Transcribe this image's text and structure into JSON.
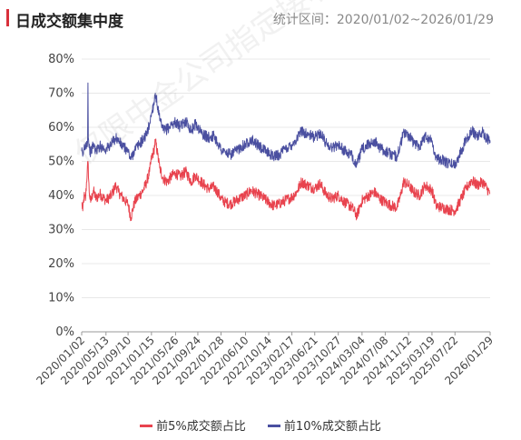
{
  "header": {
    "title": "日成交额集中度",
    "range_label": "统计区间：2020/01/02~2026/01/29"
  },
  "watermark": "仅限中金公司指定接收人使用",
  "chart_data": {
    "type": "line",
    "y_ticks": [
      "0%",
      "10%",
      "20%",
      "30%",
      "40%",
      "50%",
      "60%",
      "70%",
      "80%"
    ],
    "ylim": [
      0,
      80
    ],
    "x_range": [
      "2020/01/02",
      "2026/01/29"
    ],
    "x_ticks": [
      "2020/01/02",
      "2020/05/13",
      "2020/09/10",
      "2021/01/15",
      "2021/05/26",
      "2021/09/24",
      "2022/01/28",
      "2022/06/10",
      "2022/10/14",
      "2023/02/17",
      "2023/06/21",
      "2023/10/27",
      "2024/03/04",
      "2024/07/08",
      "2024/11/12",
      "2025/03/19",
      "2025/07/22",
      "2026/01/29"
    ],
    "grid": "horizontal",
    "legend_position": "bottom",
    "series": [
      {
        "name": "前5%成交额占比",
        "color": "#e8434e",
        "points": [
          [
            "2020/01/02",
            38.0
          ],
          [
            "2020/01/08",
            35.5
          ],
          [
            "2020/01/15",
            40.0
          ],
          [
            "2020/01/22",
            38.5
          ],
          [
            "2020/02/05",
            50.0
          ],
          [
            "2020/02/12",
            41.0
          ],
          [
            "2020/02/20",
            38.0
          ],
          [
            "2020/03/05",
            41.5
          ],
          [
            "2020/03/20",
            39.0
          ],
          [
            "2020/04/10",
            40.5
          ],
          [
            "2020/05/13",
            38.5
          ],
          [
            "2020/06/10",
            40.0
          ],
          [
            "2020/07/06",
            43.0
          ],
          [
            "2020/07/20",
            41.0
          ],
          [
            "2020/08/10",
            39.5
          ],
          [
            "2020/09/01",
            38.0
          ],
          [
            "2020/09/10",
            37.5
          ],
          [
            "2020/09/25",
            33.5
          ],
          [
            "2020/10/15",
            38.0
          ],
          [
            "2020/11/10",
            40.0
          ],
          [
            "2020/12/01",
            41.5
          ],
          [
            "2020/12/20",
            44.0
          ],
          [
            "2021/01/05",
            47.0
          ],
          [
            "2021/01/15",
            51.0
          ],
          [
            "2021/01/28",
            53.0
          ],
          [
            "2021/02/05",
            56.0
          ],
          [
            "2021/02/18",
            52.0
          ],
          [
            "2021/03/01",
            48.0
          ],
          [
            "2021/03/20",
            45.0
          ],
          [
            "2021/04/10",
            44.0
          ],
          [
            "2021/05/10",
            46.0
          ],
          [
            "2021/05/26",
            46.5
          ],
          [
            "2021/06/20",
            45.5
          ],
          [
            "2021/07/20",
            47.0
          ],
          [
            "2021/08/20",
            44.0
          ],
          [
            "2021/09/10",
            46.0
          ],
          [
            "2021/09/24",
            45.0
          ],
          [
            "2021/10/20",
            43.5
          ],
          [
            "2021/11/20",
            42.0
          ],
          [
            "2021/12/20",
            42.5
          ],
          [
            "2022/01/10",
            41.0
          ],
          [
            "2022/01/28",
            39.0
          ],
          [
            "2022/02/20",
            38.0
          ],
          [
            "2022/03/20",
            37.5
          ],
          [
            "2022/04/20",
            38.5
          ],
          [
            "2022/05/20",
            39.5
          ],
          [
            "2022/06/10",
            40.0
          ],
          [
            "2022/07/10",
            41.5
          ],
          [
            "2022/08/10",
            40.5
          ],
          [
            "2022/09/10",
            39.5
          ],
          [
            "2022/10/14",
            38.0
          ],
          [
            "2022/11/10",
            37.0
          ],
          [
            "2022/12/10",
            37.5
          ],
          [
            "2023/01/10",
            38.5
          ],
          [
            "2023/02/17",
            39.5
          ],
          [
            "2023/03/15",
            41.0
          ],
          [
            "2023/04/10",
            44.0
          ],
          [
            "2023/05/10",
            43.0
          ],
          [
            "2023/06/21",
            42.0
          ],
          [
            "2023/07/20",
            43.5
          ],
          [
            "2023/08/20",
            40.5
          ],
          [
            "2023/09/20",
            39.0
          ],
          [
            "2023/10/27",
            40.0
          ],
          [
            "2023/12/01",
            38.0
          ],
          [
            "2024/01/10",
            36.5
          ],
          [
            "2024/02/05",
            34.0
          ],
          [
            "2024/02/20",
            36.5
          ],
          [
            "2024/03/04",
            38.5
          ],
          [
            "2024/04/10",
            40.0
          ],
          [
            "2024/05/10",
            41.0
          ],
          [
            "2024/06/10",
            39.0
          ],
          [
            "2024/07/08",
            38.0
          ],
          [
            "2024/08/10",
            37.0
          ],
          [
            "2024/09/10",
            36.5
          ],
          [
            "2024/09/30",
            40.0
          ],
          [
            "2024/10/15",
            44.0
          ],
          [
            "2024/11/12",
            43.0
          ],
          [
            "2024/12/10",
            41.0
          ],
          [
            "2025/01/10",
            40.0
          ],
          [
            "2025/02/10",
            43.0
          ],
          [
            "2025/03/19",
            41.5
          ],
          [
            "2025/04/10",
            37.0
          ],
          [
            "2025/05/10",
            36.5
          ],
          [
            "2025/06/10",
            36.0
          ],
          [
            "2025/07/22",
            35.5
          ],
          [
            "2025/08/20",
            38.5
          ],
          [
            "2025/09/20",
            42.0
          ],
          [
            "2025/10/20",
            44.5
          ],
          [
            "2025/11/20",
            43.0
          ],
          [
            "2025/12/20",
            44.0
          ],
          [
            "2026/01/29",
            40.5
          ]
        ]
      },
      {
        "name": "前10%成交额占比",
        "color": "#4a4fa0",
        "points": [
          [
            "2020/01/02",
            53.0
          ],
          [
            "2020/01/08",
            51.5
          ],
          [
            "2020/01/15",
            54.0
          ],
          [
            "2020/01/22",
            55.0
          ],
          [
            "2020/02/03",
            55.5
          ],
          [
            "2020/02/05",
            73.0
          ],
          [
            "2020/02/07",
            57.0
          ],
          [
            "2020/02/12",
            54.0
          ],
          [
            "2020/02/20",
            52.5
          ],
          [
            "2020/03/05",
            55.0
          ],
          [
            "2020/03/20",
            53.0
          ],
          [
            "2020/04/10",
            54.5
          ],
          [
            "2020/05/13",
            53.5
          ],
          [
            "2020/06/10",
            55.0
          ],
          [
            "2020/07/06",
            57.0
          ],
          [
            "2020/07/20",
            56.0
          ],
          [
            "2020/08/10",
            54.5
          ],
          [
            "2020/09/01",
            53.5
          ],
          [
            "2020/09/10",
            53.0
          ],
          [
            "2020/09/25",
            50.5
          ],
          [
            "2020/10/15",
            53.5
          ],
          [
            "2020/11/10",
            55.0
          ],
          [
            "2020/12/01",
            56.5
          ],
          [
            "2020/12/20",
            58.0
          ],
          [
            "2021/01/05",
            61.0
          ],
          [
            "2021/01/15",
            64.0
          ],
          [
            "2021/01/28",
            67.0
          ],
          [
            "2021/02/05",
            70.0
          ],
          [
            "2021/02/18",
            66.0
          ],
          [
            "2021/03/01",
            62.0
          ],
          [
            "2021/03/20",
            59.0
          ],
          [
            "2021/04/10",
            59.5
          ],
          [
            "2021/05/10",
            61.0
          ],
          [
            "2021/05/26",
            61.5
          ],
          [
            "2021/06/20",
            60.0
          ],
          [
            "2021/07/20",
            62.0
          ],
          [
            "2021/08/20",
            59.0
          ],
          [
            "2021/09/10",
            61.0
          ],
          [
            "2021/09/24",
            60.0
          ],
          [
            "2021/10/20",
            58.0
          ],
          [
            "2021/11/20",
            57.0
          ],
          [
            "2021/12/20",
            57.5
          ],
          [
            "2022/01/10",
            55.5
          ],
          [
            "2022/01/28",
            53.5
          ],
          [
            "2022/02/20",
            52.5
          ],
          [
            "2022/03/20",
            52.0
          ],
          [
            "2022/04/20",
            53.0
          ],
          [
            "2022/05/20",
            54.5
          ],
          [
            "2022/06/10",
            55.0
          ],
          [
            "2022/07/10",
            56.5
          ],
          [
            "2022/08/10",
            55.0
          ],
          [
            "2022/09/10",
            53.5
          ],
          [
            "2022/10/14",
            52.5
          ],
          [
            "2022/11/10",
            51.5
          ],
          [
            "2022/12/10",
            52.0
          ],
          [
            "2023/01/10",
            53.5
          ],
          [
            "2023/02/17",
            55.0
          ],
          [
            "2023/03/15",
            56.5
          ],
          [
            "2023/04/10",
            59.0
          ],
          [
            "2023/05/10",
            58.0
          ],
          [
            "2023/06/21",
            57.0
          ],
          [
            "2023/07/20",
            58.5
          ],
          [
            "2023/08/20",
            55.5
          ],
          [
            "2023/09/20",
            54.0
          ],
          [
            "2023/10/27",
            55.0
          ],
          [
            "2023/12/01",
            53.0
          ],
          [
            "2024/01/10",
            51.5
          ],
          [
            "2024/02/05",
            49.0
          ],
          [
            "2024/02/20",
            51.5
          ],
          [
            "2024/03/04",
            53.5
          ],
          [
            "2024/04/10",
            55.0
          ],
          [
            "2024/05/10",
            56.0
          ],
          [
            "2024/06/10",
            54.0
          ],
          [
            "2024/07/08",
            53.0
          ],
          [
            "2024/08/10",
            52.0
          ],
          [
            "2024/09/10",
            51.5
          ],
          [
            "2024/09/30",
            55.0
          ],
          [
            "2024/10/15",
            58.5
          ],
          [
            "2024/11/12",
            57.5
          ],
          [
            "2024/12/10",
            55.5
          ],
          [
            "2025/01/10",
            54.5
          ],
          [
            "2025/02/10",
            57.5
          ],
          [
            "2025/03/19",
            56.0
          ],
          [
            "2025/04/10",
            51.0
          ],
          [
            "2025/05/10",
            50.5
          ],
          [
            "2025/06/10",
            49.5
          ],
          [
            "2025/07/22",
            49.0
          ],
          [
            "2025/08/20",
            52.5
          ],
          [
            "2025/09/20",
            56.5
          ],
          [
            "2025/10/20",
            59.0
          ],
          [
            "2025/11/20",
            57.5
          ],
          [
            "2025/12/20",
            58.5
          ],
          [
            "2026/01/29",
            55.5
          ]
        ]
      }
    ]
  }
}
